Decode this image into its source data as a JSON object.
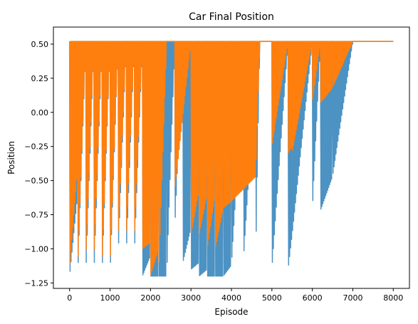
{
  "chart_data": {
    "type": "line",
    "title": "Car Final Position",
    "xlabel": "Episode",
    "ylabel": "Position",
    "xlim": [
      -400,
      8400
    ],
    "ylim": [
      -1.29,
      0.625
    ],
    "xticks": [
      0,
      1000,
      2000,
      3000,
      4000,
      5000,
      6000,
      7000,
      8000
    ],
    "xtick_labels": [
      "0",
      "1000",
      "2000",
      "3000",
      "4000",
      "5000",
      "6000",
      "7000",
      "8000"
    ],
    "yticks": [
      -1.25,
      -1.0,
      -0.75,
      -0.5,
      -0.25,
      0.0,
      0.25,
      0.5
    ],
    "ytick_labels": [
      "−1.25",
      "−1.00",
      "−0.75",
      "−0.50",
      "−0.25",
      "0.00",
      "0.25",
      "0.50"
    ],
    "grid": false,
    "legend": null,
    "series": [
      {
        "color": "#1f77b4",
        "opacity": 0.8,
        "sample_x": [
          0,
          200,
          400,
          600,
          800,
          1000,
          1200,
          1400,
          1600,
          1800,
          2000,
          2200,
          2400,
          2600,
          2800,
          3000,
          3200,
          3400,
          3600,
          3800,
          4000,
          4300,
          4600,
          4700,
          5000,
          5400,
          5500,
          6000,
          6200,
          6500,
          7000,
          8000
        ],
        "sample_y": [
          -0.6,
          -1.2,
          0.5,
          -1.2,
          0.5,
          -1.2,
          0.52,
          -1.05,
          0.52,
          -1.05,
          -1.2,
          -1.2,
          -1.2,
          0.52,
          -0.85,
          -1.1,
          -1.15,
          -1.2,
          -1.2,
          -1.2,
          -1.12,
          0.33,
          -1.07,
          0.52,
          0.52,
          -1.15,
          -0.9,
          0.52,
          -0.72,
          -0.47,
          0.52,
          0.52
        ]
      },
      {
        "color": "#ff7f0e",
        "opacity": 1.0,
        "sample_x": [
          0,
          200,
          400,
          600,
          800,
          1000,
          1200,
          1400,
          1600,
          1800,
          2000,
          2200,
          2400,
          2600,
          3000,
          3200,
          3400,
          3600,
          3800,
          4000,
          4600,
          4700,
          5000,
          5400,
          5500,
          6000,
          6200,
          6500,
          7000,
          8000
        ],
        "sample_y": [
          -0.4,
          -1.15,
          0.5,
          -1.1,
          0.5,
          -1.15,
          0.52,
          -0.95,
          0.52,
          -0.95,
          -1.0,
          -1.2,
          0.52,
          0.52,
          -0.57,
          -0.9,
          -0.6,
          -1.0,
          -0.7,
          -0.65,
          -0.47,
          0.52,
          0.52,
          -0.25,
          -0.3,
          0.52,
          0.07,
          0.18,
          0.52,
          0.52
        ]
      }
    ]
  }
}
